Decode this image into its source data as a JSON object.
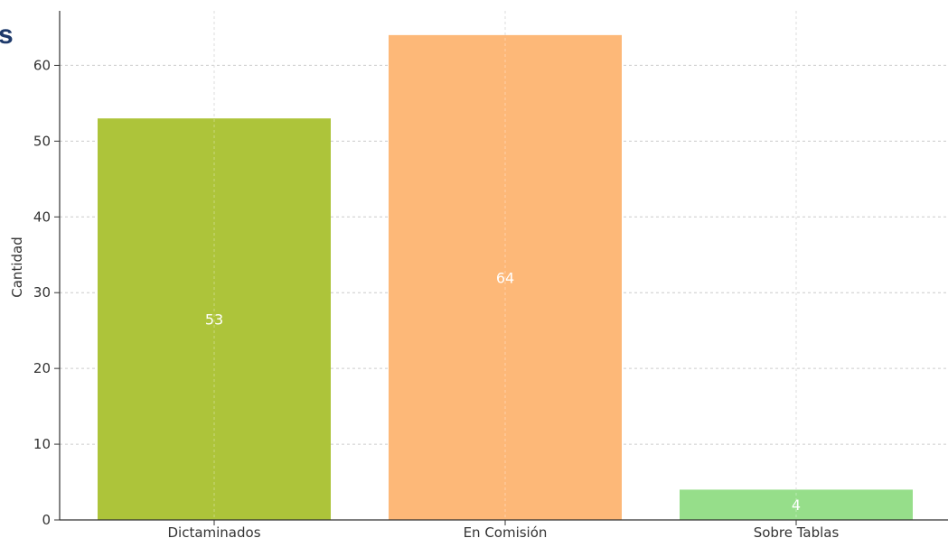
{
  "cut_title_fragment": "s",
  "chart_data": {
    "type": "bar",
    "categories": [
      "Dictaminados",
      "En Comisión",
      "Sobre Tablas"
    ],
    "values": [
      53,
      64,
      4
    ],
    "colors": [
      "#adc43a",
      "#fdb878",
      "#96de8a"
    ],
    "title": "",
    "xlabel": "",
    "ylabel": "Cantidad",
    "ylim": [
      0,
      67.2
    ],
    "yticks": [
      0,
      10,
      20,
      30,
      40,
      50,
      60
    ],
    "grid": true,
    "data_labels": true
  }
}
